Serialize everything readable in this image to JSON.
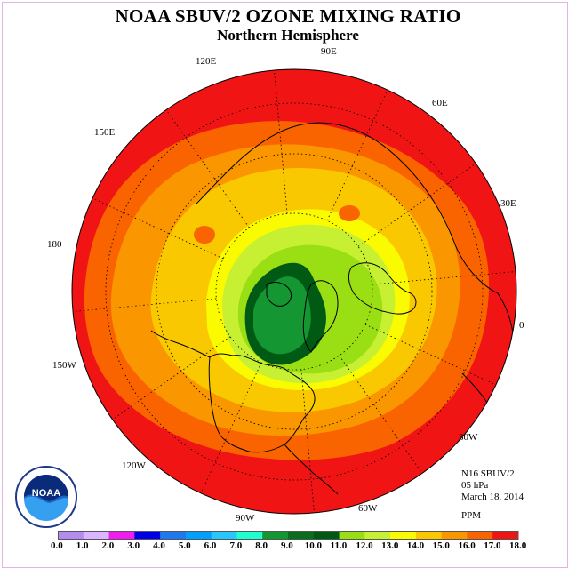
{
  "title": "NOAA SBUV/2 OZONE MIXING RATIO",
  "subtitle": "Northern Hemisphere",
  "longitudes": {
    "lon_90e": "90E",
    "lon_60e": "60E",
    "lon_30e": "30E",
    "lon_0": "0",
    "lon_30w": "30W",
    "lon_60w": "60W",
    "lon_90w": "90W",
    "lon_120w": "120W",
    "lon_150w": "150W",
    "lon_180": "180",
    "lon_150e": "150E",
    "lon_120e": "120E"
  },
  "info": {
    "instrument": "N16 SBUV/2",
    "level": "05 hPa",
    "date": "March 18, 2014"
  },
  "units": "PPM",
  "colorbar": {
    "ticks": [
      "0.0",
      "1.0",
      "2.0",
      "3.0",
      "4.0",
      "5.0",
      "6.0",
      "7.0",
      "8.0",
      "9.0",
      "10.0",
      "11.0",
      "12.0",
      "13.0",
      "14.0",
      "15.0",
      "16.0",
      "17.0",
      "18.0"
    ],
    "colors": [
      "#b48cf0",
      "#dcb4ff",
      "#f01cf0",
      "#0000e6",
      "#1e78f0",
      "#00a0ff",
      "#28c8ff",
      "#20ffd0",
      "#149632",
      "#0a6e1e",
      "#005a14",
      "#9ade14",
      "#c8f032",
      "#fafa00",
      "#fac800",
      "#fa9600",
      "#fa6400",
      "#f01414",
      "#8c5a3c"
    ]
  },
  "map_colors": {
    "level_16_17": "#f01414",
    "level_15_16": "#fa6400",
    "level_14_15": "#fa9600",
    "level_13_14": "#fac800",
    "level_12_13": "#fafa00",
    "level_11_12": "#c8f032",
    "level_10_11": "#9ade14",
    "level_9_10": "#005a14",
    "level_8_9": "#149632"
  },
  "logo_text": "NOAA"
}
